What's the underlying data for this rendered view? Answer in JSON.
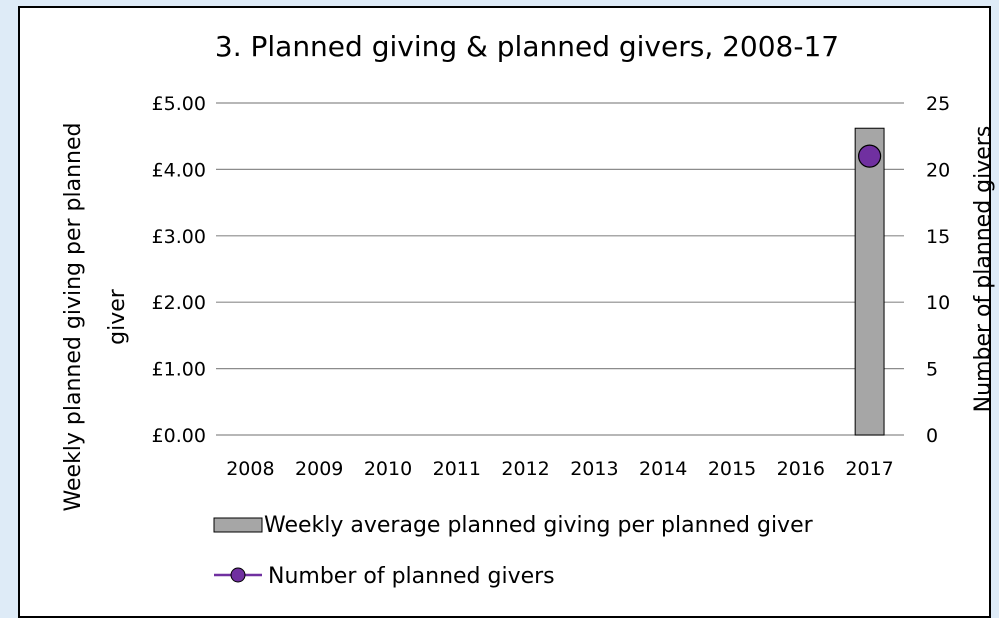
{
  "chart_data": {
    "type": "bar",
    "title": "3. Planned giving & planned givers, 2008-17",
    "categories": [
      "2008",
      "2009",
      "2010",
      "2011",
      "2012",
      "2013",
      "2014",
      "2015",
      "2016",
      "2017"
    ],
    "series": [
      {
        "name": "Weekly average planned giving per planned giver",
        "kind": "bar",
        "axis": "left",
        "color": "#a6a6a6",
        "values": [
          null,
          null,
          null,
          null,
          null,
          null,
          null,
          null,
          null,
          4.62
        ]
      },
      {
        "name": "Number of planned givers",
        "kind": "line-marker",
        "axis": "right",
        "color": "#7030a0",
        "values": [
          null,
          null,
          null,
          null,
          null,
          null,
          null,
          null,
          null,
          21
        ]
      }
    ],
    "y_left": {
      "label_line1": "Weekly planned giving per planned",
      "label_line2": "giver",
      "lim": [
        0,
        5
      ],
      "ticks": [
        "£0.00",
        "£1.00",
        "£2.00",
        "£3.00",
        "£4.00",
        "£5.00"
      ]
    },
    "y_right": {
      "label": "Number of planned givers",
      "lim": [
        0,
        25
      ],
      "ticks": [
        "0",
        "5",
        "10",
        "15",
        "20",
        "25"
      ]
    },
    "grid": true,
    "legend_position": "bottom"
  }
}
